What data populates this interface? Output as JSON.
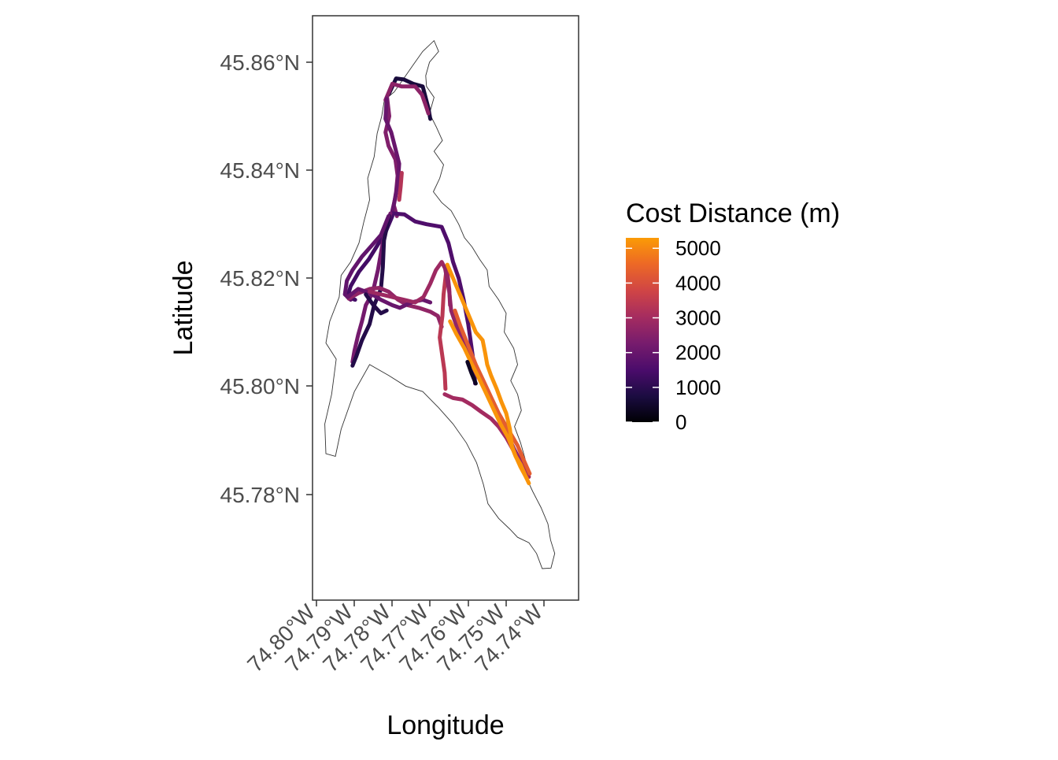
{
  "chart_data": {
    "type": "map",
    "xlabel": "Longitude",
    "ylabel": "Latitude",
    "x_ticks": [
      {
        "value": -74.8,
        "label": "74.80°W"
      },
      {
        "value": -74.79,
        "label": "74.79°W"
      },
      {
        "value": -74.78,
        "label": "74.78°W"
      },
      {
        "value": -74.77,
        "label": "74.77°W"
      },
      {
        "value": -74.76,
        "label": "74.76°W"
      },
      {
        "value": -74.75,
        "label": "74.75°W"
      },
      {
        "value": -74.74,
        "label": "74.74°W"
      }
    ],
    "y_ticks": [
      {
        "value": 45.78,
        "label": "45.78°N"
      },
      {
        "value": 45.8,
        "label": "45.80°N"
      },
      {
        "value": 45.82,
        "label": "45.82°N"
      },
      {
        "value": 45.84,
        "label": "45.84°N"
      },
      {
        "value": 45.86,
        "label": "45.86°N"
      }
    ],
    "xlim": [
      -74.8007,
      -74.7311
    ],
    "ylim": [
      45.7661,
      45.8686
    ],
    "legend": {
      "title": "Cost Distance (m)",
      "position": "right",
      "range": [
        0,
        5300
      ],
      "breaks": [
        0,
        1000,
        2000,
        3000,
        4000,
        5000
      ],
      "colors": [
        "#000004",
        "#1b0c41",
        "#4a0c6b",
        "#781c6d",
        "#a52c60",
        "#cf4446",
        "#ed6925",
        "#fb9b06"
      ]
    },
    "outline_color": "#333333",
    "land_outline": [
      [
        -74.7821,
        45.853
      ],
      [
        -74.7795,
        45.8545
      ],
      [
        -74.777,
        45.857
      ],
      [
        -74.7745,
        45.8595
      ],
      [
        -74.772,
        45.862
      ],
      [
        -74.769,
        45.864
      ],
      [
        -74.7678,
        45.862
      ],
      [
        -74.7702,
        45.86
      ],
      [
        -74.7712,
        45.8575
      ],
      [
        -74.771,
        45.8555
      ],
      [
        -74.769,
        45.8535
      ],
      [
        -74.7702,
        45.8505
      ],
      [
        -74.7684,
        45.848
      ],
      [
        -74.7668,
        45.8455
      ],
      [
        -74.769,
        45.8435
      ],
      [
        -74.7665,
        45.841
      ],
      [
        -74.7675,
        45.8385
      ],
      [
        -74.7692,
        45.836
      ],
      [
        -74.767,
        45.834
      ],
      [
        -74.7645,
        45.8325
      ],
      [
        -74.7625,
        45.83
      ],
      [
        -74.761,
        45.8275
      ],
      [
        -74.759,
        45.8258
      ],
      [
        -74.757,
        45.8235
      ],
      [
        -74.755,
        45.8215
      ],
      [
        -74.7545,
        45.8185
      ],
      [
        -74.752,
        45.816
      ],
      [
        -74.75,
        45.8135
      ],
      [
        -74.7505,
        45.81
      ],
      [
        -74.748,
        45.807
      ],
      [
        -74.747,
        45.804
      ],
      [
        -74.7488,
        45.801
      ],
      [
        -74.747,
        45.7985
      ],
      [
        -74.746,
        45.7955
      ],
      [
        -74.7478,
        45.7925
      ],
      [
        -74.7462,
        45.7895
      ],
      [
        -74.745,
        45.7865
      ],
      [
        -74.745,
        45.7835
      ],
      [
        -74.743,
        45.7805
      ],
      [
        -74.7408,
        45.7775
      ],
      [
        -74.739,
        45.7745
      ],
      [
        -74.7383,
        45.7715
      ],
      [
        -74.7372,
        45.769
      ],
      [
        -74.7382,
        45.7663
      ],
      [
        -74.7405,
        45.7662
      ],
      [
        -74.742,
        45.769
      ],
      [
        -74.744,
        45.771
      ],
      [
        -74.747,
        45.772
      ],
      [
        -74.749,
        45.7735
      ],
      [
        -74.752,
        45.7755
      ],
      [
        -74.7548,
        45.7782
      ],
      [
        -74.756,
        45.7818
      ],
      [
        -74.7578,
        45.7858
      ],
      [
        -74.7605,
        45.7895
      ],
      [
        -74.764,
        45.793
      ],
      [
        -74.7678,
        45.796
      ],
      [
        -74.772,
        45.799
      ],
      [
        -74.7765,
        45.8
      ],
      [
        -74.781,
        45.802
      ],
      [
        -74.786,
        45.804
      ],
      [
        -74.79,
        45.799
      ],
      [
        -74.7935,
        45.792
      ],
      [
        -74.795,
        45.787
      ],
      [
        -74.7975,
        45.7875
      ],
      [
        -74.7978,
        45.793
      ],
      [
        -74.796,
        45.7985
      ],
      [
        -74.7948,
        45.805
      ],
      [
        -74.7975,
        45.808
      ],
      [
        -74.7965,
        45.812
      ],
      [
        -74.794,
        45.8165
      ],
      [
        -74.7935,
        45.8205
      ],
      [
        -74.791,
        45.823
      ],
      [
        -74.7888,
        45.8265
      ],
      [
        -74.7875,
        45.8305
      ],
      [
        -74.786,
        45.8345
      ],
      [
        -74.7865,
        45.8385
      ],
      [
        -74.7848,
        45.8425
      ],
      [
        -74.784,
        45.8468
      ],
      [
        -74.7828,
        45.85
      ],
      [
        -74.7821,
        45.853
      ]
    ],
    "tracks": [
      {
        "cost": 700,
        "points": [
          [
            -74.781,
            45.854
          ],
          [
            -74.779,
            45.857
          ],
          [
            -74.777,
            45.8568
          ],
          [
            -74.7745,
            45.856
          ],
          [
            -74.772,
            45.8555
          ],
          [
            -74.7705,
            45.8515
          ],
          [
            -74.77,
            45.8495
          ]
        ]
      },
      {
        "cost": 2600,
        "points": [
          [
            -74.7818,
            45.853
          ],
          [
            -74.78,
            45.856
          ],
          [
            -74.7775,
            45.8555
          ],
          [
            -74.774,
            45.8555
          ],
          [
            -74.7722,
            45.854
          ],
          [
            -74.7712,
            45.852
          ],
          [
            -74.7705,
            45.8505
          ]
        ]
      },
      {
        "cost": 2400,
        "points": [
          [
            -74.7814,
            45.8535
          ],
          [
            -74.7808,
            45.85
          ],
          [
            -74.7818,
            45.847
          ],
          [
            -74.781,
            45.8445
          ],
          [
            -74.7792,
            45.842
          ],
          [
            -74.7786,
            45.839
          ],
          [
            -74.779,
            45.836
          ],
          [
            -74.7796,
            45.8335
          ],
          [
            -74.7788,
            45.8315
          ]
        ]
      },
      {
        "cost": 2000,
        "points": [
          [
            -74.7815,
            45.8532
          ],
          [
            -74.7818,
            45.8495
          ],
          [
            -74.7803,
            45.847
          ],
          [
            -74.7792,
            45.844
          ],
          [
            -74.7782,
            45.8412
          ],
          [
            -74.7785,
            45.838
          ],
          [
            -74.7792,
            45.835
          ],
          [
            -74.78,
            45.8325
          ]
        ]
      },
      {
        "cost": 3300,
        "points": [
          [
            -74.7775,
            45.8395
          ],
          [
            -74.7778,
            45.837
          ],
          [
            -74.7782,
            45.8345
          ]
        ]
      },
      {
        "cost": 1600,
        "points": [
          [
            -74.78,
            45.832
          ],
          [
            -74.7768,
            45.8318
          ],
          [
            -74.774,
            45.8305
          ],
          [
            -74.771,
            45.83
          ],
          [
            -74.767,
            45.8295
          ],
          [
            -74.7652,
            45.8265
          ],
          [
            -74.764,
            45.823
          ],
          [
            -74.7625,
            45.82
          ],
          [
            -74.7612,
            45.816
          ],
          [
            -74.76,
            45.8115
          ],
          [
            -74.7592,
            45.8075
          ],
          [
            -74.7585,
            45.804
          ],
          [
            -74.7582,
            45.8005
          ]
        ]
      },
      {
        "cost": 1400,
        "points": [
          [
            -74.78,
            45.8315
          ],
          [
            -74.7818,
            45.8285
          ],
          [
            -74.784,
            45.826
          ],
          [
            -74.7862,
            45.8235
          ],
          [
            -74.7888,
            45.8212
          ],
          [
            -74.791,
            45.8185
          ],
          [
            -74.7918,
            45.8165
          ],
          [
            -74.7898,
            45.816
          ]
        ]
      },
      {
        "cost": 2200,
        "points": [
          [
            -74.7805,
            45.832
          ],
          [
            -74.7818,
            45.829
          ],
          [
            -74.7828,
            45.8255
          ],
          [
            -74.7838,
            45.8215
          ],
          [
            -74.7848,
            45.8185
          ],
          [
            -74.7858,
            45.8165
          ],
          [
            -74.787,
            45.815
          ],
          [
            -74.788,
            45.812
          ],
          [
            -74.789,
            45.8095
          ],
          [
            -74.79,
            45.8065
          ],
          [
            -74.7905,
            45.8045
          ]
        ]
      },
      {
        "cost": 900,
        "points": [
          [
            -74.7808,
            45.8315
          ],
          [
            -74.7822,
            45.827
          ],
          [
            -74.7825,
            45.822
          ],
          [
            -74.783,
            45.818
          ],
          [
            -74.7848,
            45.815
          ],
          [
            -74.786,
            45.8115
          ],
          [
            -74.788,
            45.8085
          ],
          [
            -74.7895,
            45.8055
          ],
          [
            -74.7905,
            45.8038
          ]
        ]
      },
      {
        "cost": 1900,
        "points": [
          [
            -74.781,
            45.8315
          ],
          [
            -74.783,
            45.828
          ],
          [
            -74.7855,
            45.826
          ],
          [
            -74.788,
            45.824
          ],
          [
            -74.7905,
            45.8215
          ],
          [
            -74.792,
            45.8195
          ],
          [
            -74.7925,
            45.817
          ],
          [
            -74.791,
            45.816
          ]
        ]
      },
      {
        "cost": 2700,
        "points": [
          [
            -74.7915,
            45.8162
          ],
          [
            -74.789,
            45.8172
          ],
          [
            -74.786,
            45.818
          ],
          [
            -74.7835,
            45.8182
          ],
          [
            -74.781,
            45.8175
          ],
          [
            -74.7785,
            45.816
          ],
          [
            -74.776,
            45.815
          ],
          [
            -74.773,
            45.8145
          ],
          [
            -74.77,
            45.8138
          ],
          [
            -74.768,
            45.813
          ],
          [
            -74.767,
            45.811
          ]
        ]
      },
      {
        "cost": 2000,
        "points": [
          [
            -74.7918,
            45.8165
          ],
          [
            -74.789,
            45.818
          ],
          [
            -74.7858,
            45.8172
          ],
          [
            -74.783,
            45.816
          ],
          [
            -74.78,
            45.815
          ],
          [
            -74.778,
            45.8145
          ],
          [
            -74.775,
            45.8155
          ],
          [
            -74.772,
            45.816
          ],
          [
            -74.77,
            45.8155
          ]
        ]
      },
      {
        "cost": 900,
        "points": [
          [
            -74.787,
            45.817
          ],
          [
            -74.785,
            45.815
          ],
          [
            -74.783,
            45.8135
          ],
          [
            -74.7815,
            45.814
          ]
        ]
      },
      {
        "cost": 2900,
        "points": [
          [
            -74.786,
            45.8175
          ],
          [
            -74.783,
            45.817
          ],
          [
            -74.78,
            45.8165
          ],
          [
            -74.777,
            45.816
          ],
          [
            -74.774,
            45.8155
          ],
          [
            -74.7718,
            45.8165
          ],
          [
            -74.77,
            45.819
          ],
          [
            -74.7685,
            45.8215
          ],
          [
            -74.767,
            45.823
          ],
          [
            -74.7655,
            45.821
          ],
          [
            -74.765,
            45.818
          ],
          [
            -74.7648,
            45.815
          ]
        ]
      },
      {
        "cost": 3400,
        "points": [
          [
            -74.7658,
            45.8212
          ],
          [
            -74.7665,
            45.817
          ],
          [
            -74.7668,
            45.813
          ],
          [
            -74.7675,
            45.809
          ],
          [
            -74.7668,
            45.8055
          ],
          [
            -74.7662,
            45.8025
          ],
          [
            -74.766,
            45.7995
          ]
        ]
      },
      {
        "cost": 2700,
        "points": [
          [
            -74.7662,
            45.8222
          ],
          [
            -74.765,
            45.8175
          ],
          [
            -74.7645,
            45.814
          ],
          [
            -74.763,
            45.811
          ],
          [
            -74.761,
            45.808
          ],
          [
            -74.759,
            45.8055
          ],
          [
            -74.7575,
            45.803
          ],
          [
            -74.756,
            45.8
          ],
          [
            -74.754,
            45.797
          ],
          [
            -74.752,
            45.7945
          ],
          [
            -74.75,
            45.7915
          ],
          [
            -74.748,
            45.7885
          ],
          [
            -74.746,
            45.7858
          ],
          [
            -74.7445,
            45.7835
          ]
        ]
      },
      {
        "cost": 3000,
        "points": [
          [
            -74.7662,
            45.7985
          ],
          [
            -74.764,
            45.7978
          ],
          [
            -74.7615,
            45.7975
          ],
          [
            -74.759,
            45.7965
          ],
          [
            -74.7565,
            45.7952
          ],
          [
            -74.754,
            45.794
          ],
          [
            -74.752,
            45.7925
          ],
          [
            -74.75,
            45.7905
          ],
          [
            -74.748,
            45.788
          ],
          [
            -74.7465,
            45.786
          ],
          [
            -74.7452,
            45.7845
          ],
          [
            -74.744,
            45.7832
          ]
        ]
      },
      {
        "cost": 4300,
        "points": [
          [
            -74.7635,
            45.814
          ],
          [
            -74.762,
            45.811
          ],
          [
            -74.76,
            45.8075
          ],
          [
            -74.758,
            45.804
          ],
          [
            -74.756,
            45.801
          ],
          [
            -74.754,
            45.798
          ],
          [
            -74.752,
            45.795
          ],
          [
            -74.7495,
            45.792
          ],
          [
            -74.747,
            45.789
          ],
          [
            -74.7455,
            45.7865
          ],
          [
            -74.7438,
            45.7838
          ]
        ]
      },
      {
        "cost": 5200,
        "points": [
          [
            -74.7655,
            45.8225
          ],
          [
            -74.764,
            45.82
          ],
          [
            -74.7625,
            45.8175
          ],
          [
            -74.761,
            45.815
          ],
          [
            -74.7595,
            45.8125
          ],
          [
            -74.758,
            45.81
          ],
          [
            -74.7562,
            45.8085
          ],
          [
            -74.7555,
            45.806
          ],
          [
            -74.755,
            45.804
          ],
          [
            -74.754,
            45.802
          ],
          [
            -74.7525,
            45.7995
          ],
          [
            -74.7512,
            45.797
          ],
          [
            -74.75,
            45.795
          ],
          [
            -74.749,
            45.792
          ],
          [
            -74.7485,
            45.789
          ],
          [
            -74.7475,
            45.787
          ],
          [
            -74.7462,
            45.7855
          ],
          [
            -74.745,
            45.7835
          ],
          [
            -74.744,
            45.782
          ]
        ]
      },
      {
        "cost": 5200,
        "points": [
          [
            -74.7648,
            45.812
          ],
          [
            -74.763,
            45.8095
          ],
          [
            -74.761,
            45.807
          ],
          [
            -74.759,
            45.804
          ],
          [
            -74.7572,
            45.8015
          ],
          [
            -74.7555,
            45.799
          ],
          [
            -74.7535,
            45.796
          ],
          [
            -74.7515,
            45.793
          ],
          [
            -74.7495,
            45.7905
          ],
          [
            -74.7478,
            45.7875
          ],
          [
            -74.7462,
            45.785
          ],
          [
            -74.7445,
            45.7828
          ]
        ]
      },
      {
        "cost": 400,
        "points": [
          [
            -74.7602,
            45.8045
          ],
          [
            -74.7592,
            45.8025
          ],
          [
            -74.758,
            45.8005
          ]
        ]
      }
    ]
  }
}
